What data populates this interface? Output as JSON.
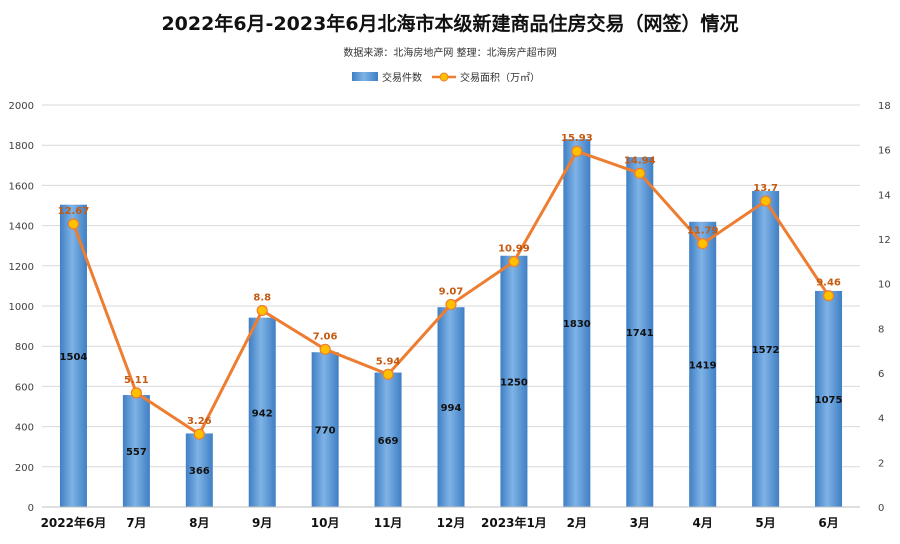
{
  "chart_data": {
    "type": "bar",
    "title": "2022年6月-2023年6月北海市本级新建商品住房交易（网签）情况",
    "subtitle": "数据来源：北海房地产网    整理：北海房产超市网",
    "categories": [
      "2022年6月",
      "7月",
      "8月",
      "9月",
      "10月",
      "11月",
      "12月",
      "2023年1月",
      "2月",
      "3月",
      "4月",
      "5月",
      "6月"
    ],
    "series": [
      {
        "name": "交易件数",
        "type": "bar",
        "axis": "left",
        "color": "#5b9bd5",
        "values": [
          1504,
          557,
          366,
          942,
          770,
          669,
          994,
          1250,
          1830,
          1741,
          1419,
          1572,
          1075
        ]
      },
      {
        "name": "交易面积（万㎡）",
        "type": "line",
        "axis": "right",
        "color": "#ed7d31",
        "marker_color": "#ffc000",
        "values": [
          12.67,
          5.11,
          3.26,
          8.8,
          7.06,
          5.94,
          9.07,
          10.99,
          15.93,
          14.94,
          11.79,
          13.7,
          9.46
        ]
      }
    ],
    "y_left": {
      "min": 0,
      "max": 2000,
      "ticks": [
        0,
        200,
        400,
        600,
        800,
        1000,
        1200,
        1400,
        1600,
        1800,
        2000
      ]
    },
    "y_right": {
      "min": 0,
      "max": 18,
      "ticks": [
        0,
        2,
        4,
        6,
        8,
        10,
        12,
        14,
        16,
        18
      ]
    },
    "legend_position": "top-center",
    "grid": true
  }
}
